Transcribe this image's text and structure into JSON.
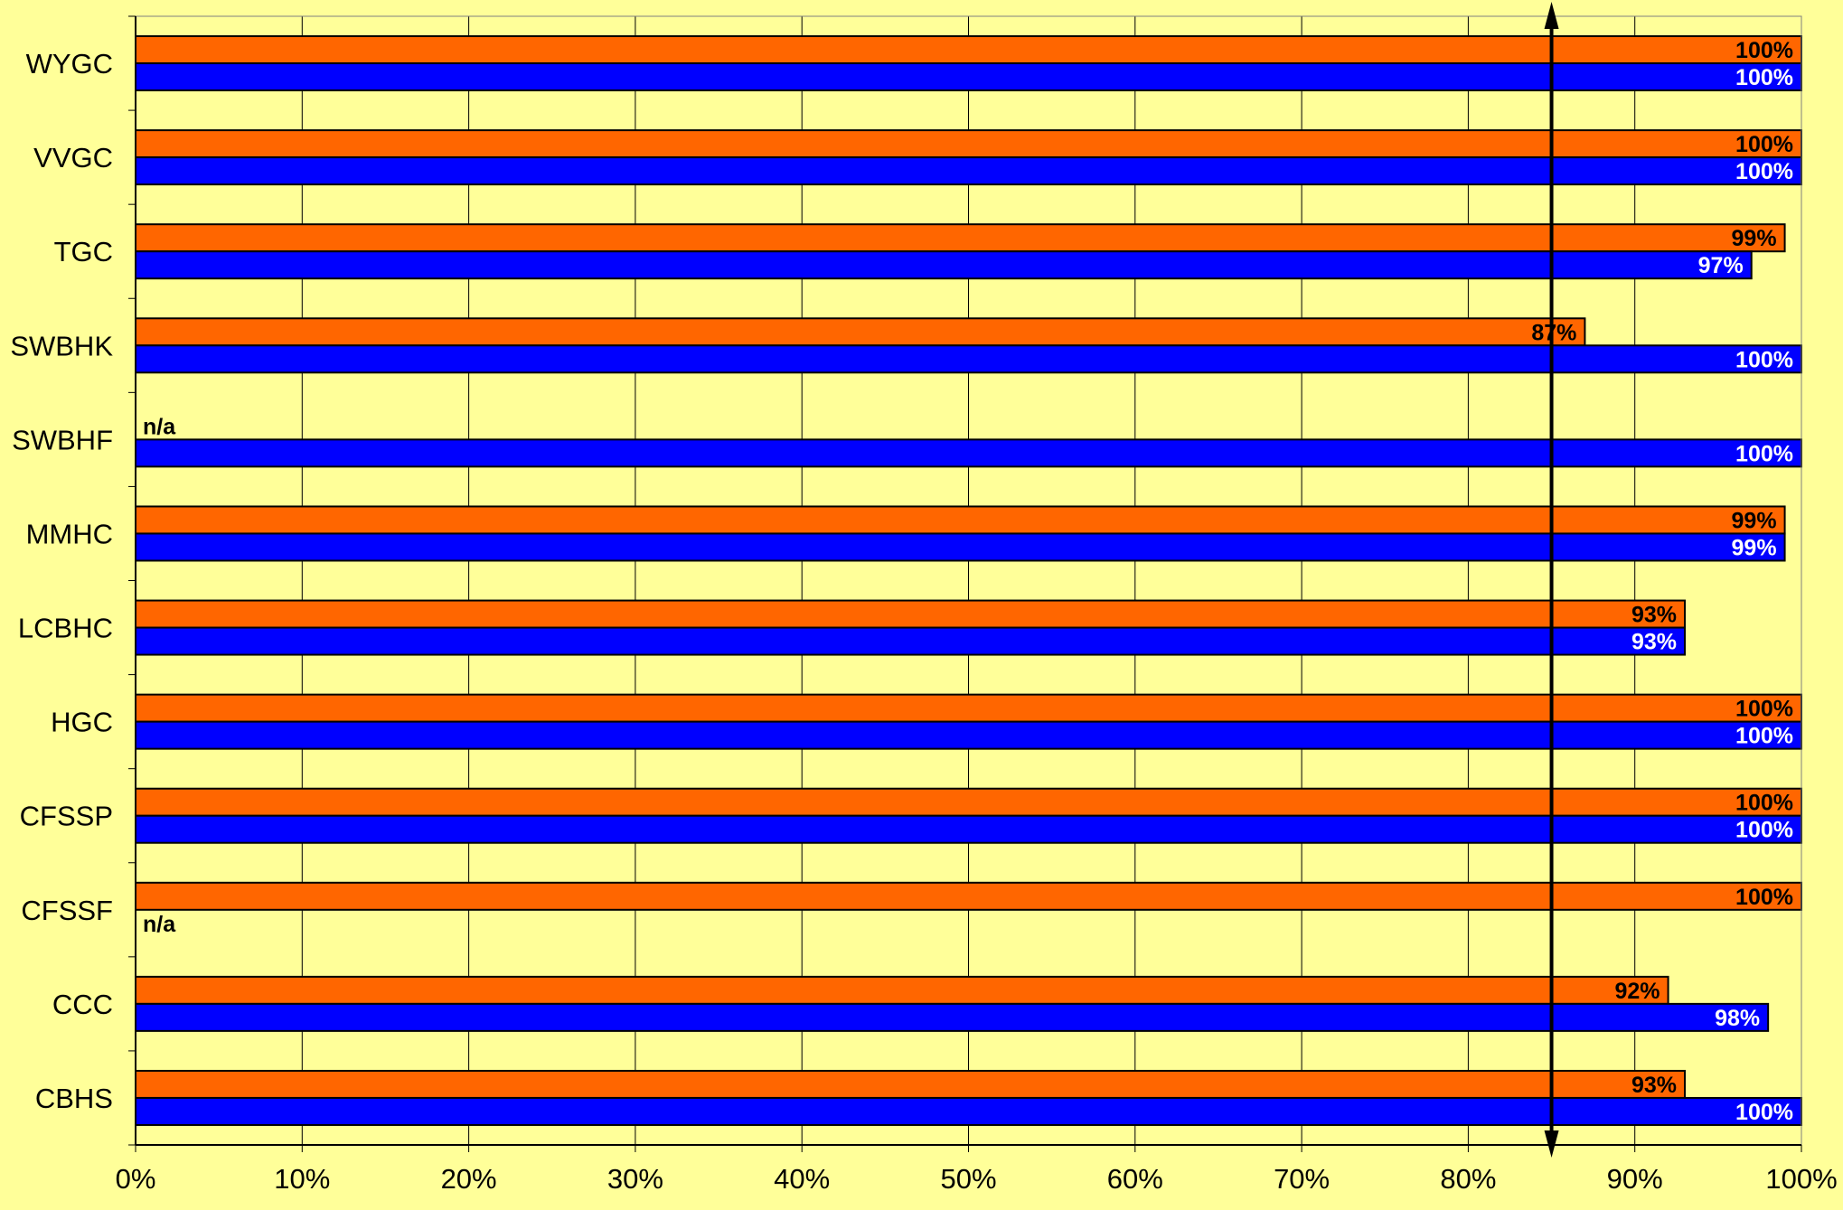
{
  "chart_data": {
    "type": "bar",
    "orientation": "horizontal",
    "categories": [
      "WYGC",
      "VVGC",
      "TGC",
      "SWBHK",
      "SWBHF",
      "MMHC",
      "LCBHC",
      "HGC",
      "CFSSP",
      "CFSSF",
      "CCC",
      "CBHS"
    ],
    "series": [
      {
        "color": "#FF6600",
        "values": [
          100,
          100,
          99,
          87,
          null,
          99,
          93,
          100,
          100,
          100,
          92,
          93
        ],
        "labels": [
          "100%",
          "100%",
          "99%",
          "87%",
          "n/a",
          "99%",
          "93%",
          "100%",
          "100%",
          "100%",
          "92%",
          "93%"
        ]
      },
      {
        "color": "#0000FF",
        "values": [
          100,
          100,
          97,
          100,
          100,
          99,
          93,
          100,
          100,
          null,
          98,
          100
        ],
        "labels": [
          "100%",
          "100%",
          "97%",
          "100%",
          "100%",
          "99%",
          "93%",
          "100%",
          "100%",
          "n/a",
          "98%",
          "100%"
        ]
      }
    ],
    "xlim": [
      0,
      100
    ],
    "xticks": [
      "0%",
      "10%",
      "20%",
      "30%",
      "40%",
      "50%",
      "60%",
      "70%",
      "80%",
      "90%",
      "100%"
    ],
    "reference_line": 85,
    "grid": "vertical",
    "background": "#FFFF99",
    "legend": "none",
    "title": "",
    "xlabel": "",
    "ylabel": ""
  }
}
